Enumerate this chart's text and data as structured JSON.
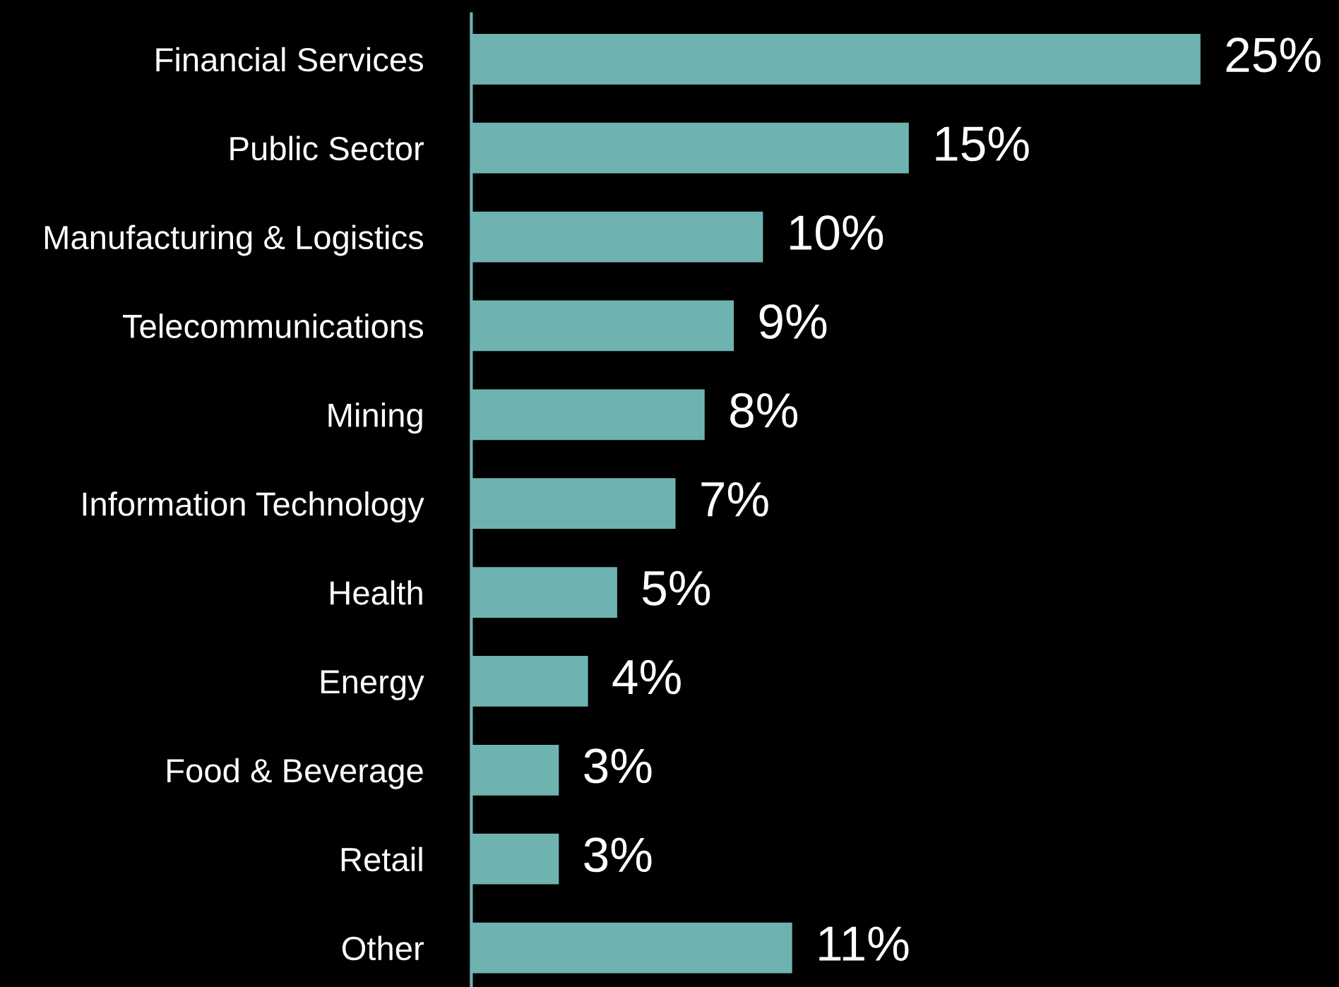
{
  "chart_data": {
    "type": "bar",
    "orientation": "horizontal",
    "categories": [
      "Financial Services",
      "Public Sector",
      "Manufacturing & Logistics",
      "Telecommunications",
      "Mining",
      "Information Technology",
      "Health",
      "Energy",
      "Food & Beverage",
      "Retail",
      "Other"
    ],
    "values": [
      25,
      15,
      10,
      9,
      8,
      7,
      5,
      4,
      3,
      3,
      11
    ],
    "value_labels": [
      "25%",
      "15%",
      "10%",
      "9%",
      "8%",
      "7%",
      "5%",
      "4%",
      "3%",
      "3%",
      "11%"
    ],
    "color": "#6fb3b0",
    "grid": false,
    "legend": false,
    "tick_labels": "y"
  }
}
